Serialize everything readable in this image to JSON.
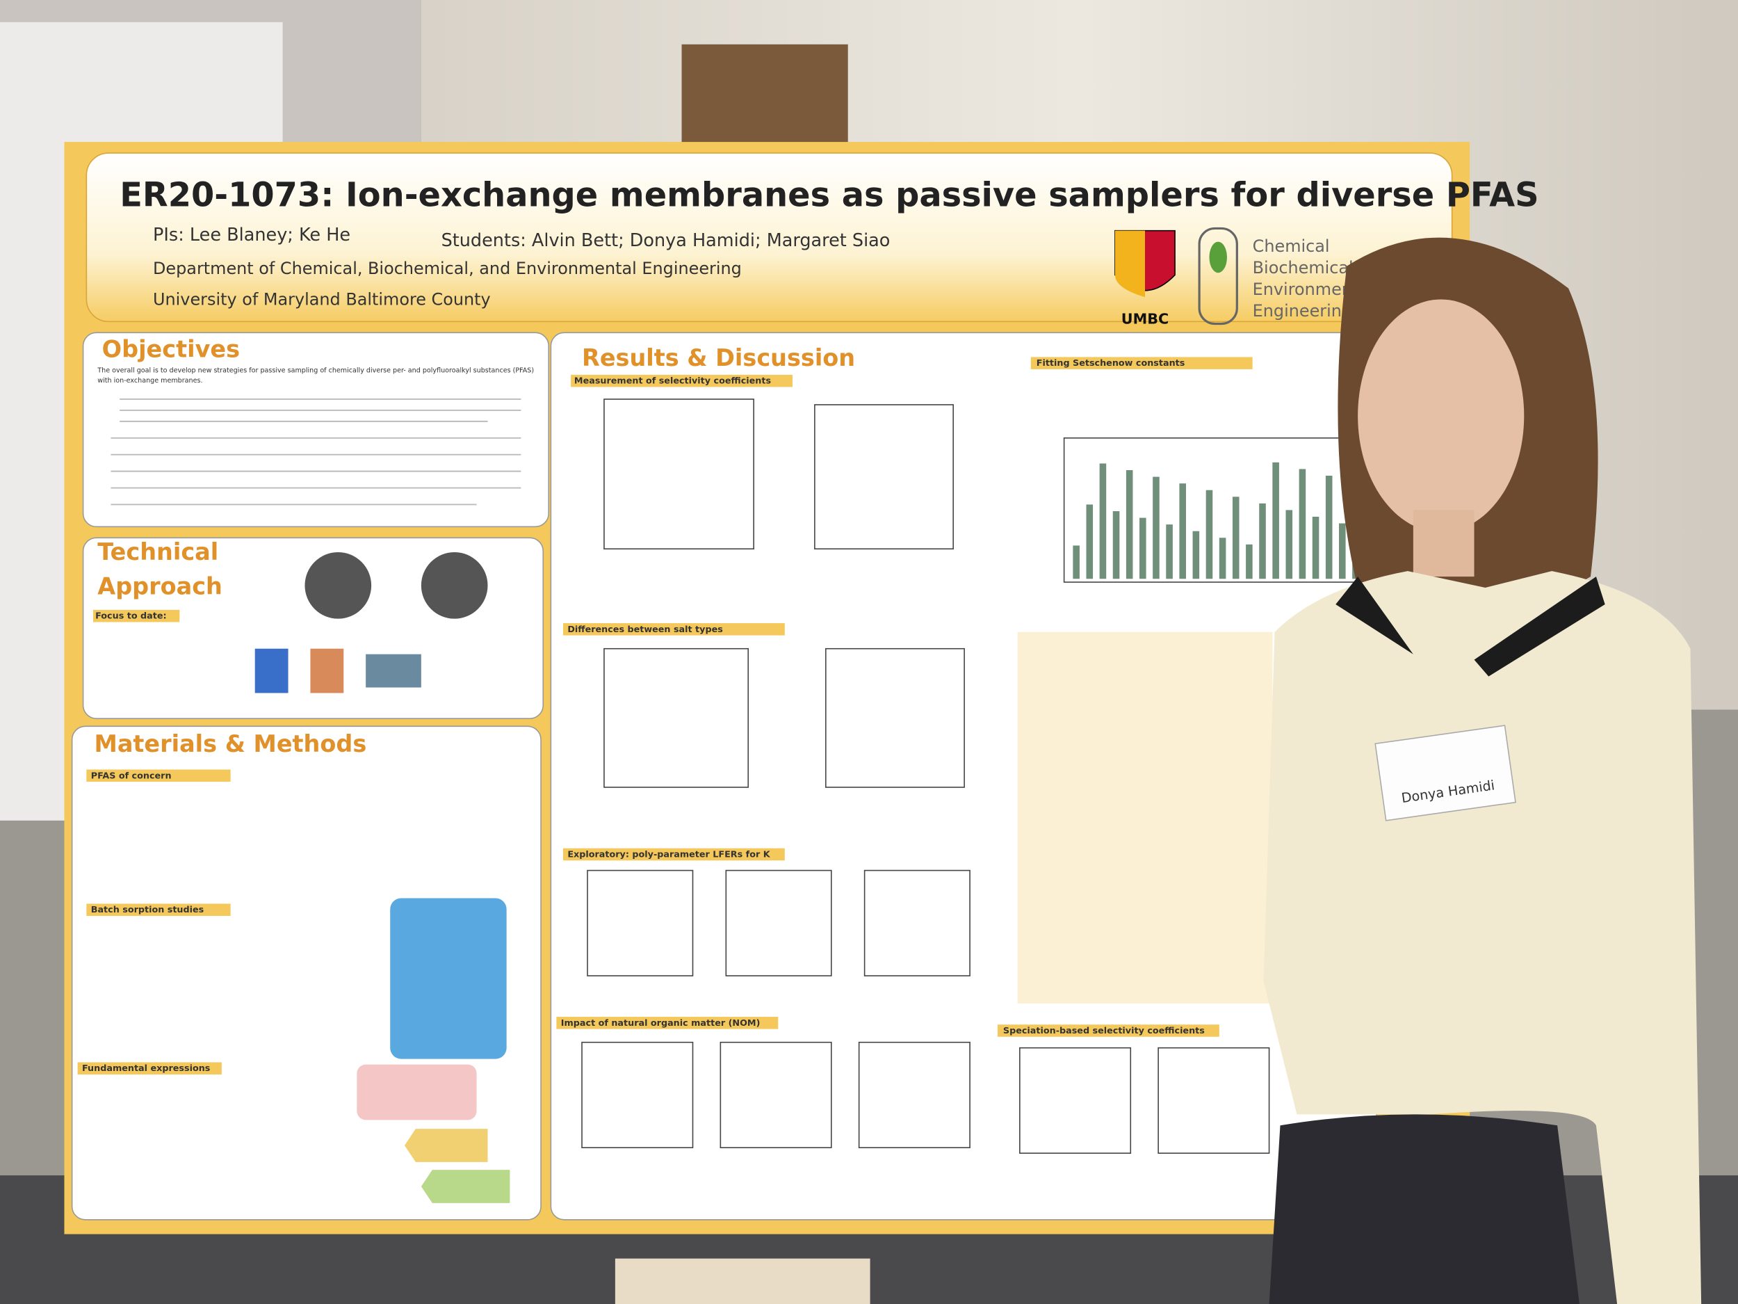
{
  "poster": {
    "title": "ER20-1073: Ion-exchange membranes as passive samplers for diverse PFAS",
    "pis": "PIs: Lee Blaney; Ke He",
    "students": "Students: Alvin Bett; Donya Hamidi; Margaret Siao",
    "department": "Department of Chemical, Biochemical, and Environmental Engineering",
    "university": "University of Maryland Baltimore County",
    "logo": "UMBC",
    "dept_logo": [
      "Chemical",
      "Biochemical and",
      "Environmental",
      "Engineering"
    ],
    "sections": {
      "objectives": "Objectives",
      "objectives_text": "The overall goal is to develop new strategies for passive sampling of chemically diverse per- and polyfluoroalkyl substances (PFAS) with ion-exchange membranes.",
      "technical": [
        "Technical",
        "Approach"
      ],
      "focus": "Focus to date:",
      "methods": "Materials & Methods",
      "pfas": "PFAS of concern",
      "batch": "Batch sorption studies",
      "expressions": "Fundamental expressions",
      "results": "Results & Discussion",
      "measurement": "Measurement of selectivity coefficients",
      "fitting": "Fitting Setschenow constants",
      "salt": "Differences between salt types",
      "lfer": "Exploratory: poly-parameter LFERs for K",
      "nom": "Impact of natural organic matter (NOM)",
      "speciation": "Speciation-based selectivity coefficients"
    }
  },
  "badge": "Donya Hamidi"
}
